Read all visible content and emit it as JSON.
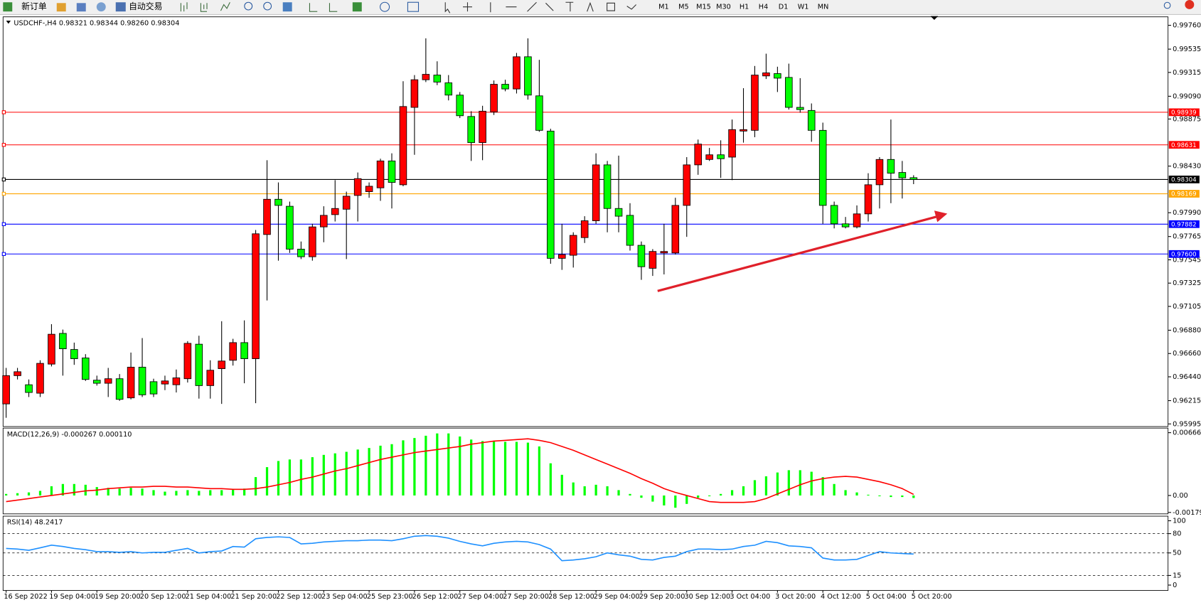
{
  "toolbar": {
    "new_order": "新订单",
    "auto_trading": "自动交易",
    "timeframes": [
      "M1",
      "M5",
      "M15",
      "M30",
      "H1",
      "H4",
      "D1",
      "W1",
      "MN"
    ]
  },
  "chart_data": [
    {
      "type": "candlestick",
      "title": "USDCHF-,H4  0.98321 0.98344 0.98260 0.98304",
      "up_color": "#ff0000",
      "down_color": "#00ff00",
      "categories": [
        "16 Sep 2022",
        null,
        null,
        null,
        "19 Sep 04:00",
        null,
        null,
        null,
        "19 Sep 20:00",
        null,
        null,
        null,
        "20 Sep 12:00",
        null,
        null,
        null,
        "21 Sep 04:00",
        null,
        null,
        null,
        "21 Sep 20:00",
        null,
        null,
        null,
        "22 Sep 12:00",
        null,
        null,
        null,
        "23 Sep 04:00",
        null,
        null,
        null,
        "25 Sep 23:00",
        null,
        null,
        null,
        "26 Sep 12:00",
        null,
        null,
        null,
        "27 Sep 04:00",
        null,
        null,
        null,
        "27 Sep 20:00",
        null,
        null,
        null,
        "28 Sep 12:00",
        null,
        null,
        null,
        "29 Sep 04:00",
        null,
        null,
        null,
        "29 Sep 20:00",
        null,
        null,
        null,
        "30 Sep 12:00",
        null,
        null,
        null,
        "3 Oct 04:00",
        null,
        null,
        null,
        "3 Oct 20:00",
        null,
        null,
        null,
        "4 Oct 12:00",
        null,
        null,
        null,
        "5 Oct 04:00",
        null,
        null,
        null,
        "5 Oct 20:00"
      ],
      "open": [
        0.96184,
        0.96451,
        0.96365,
        0.96285,
        0.9656,
        0.9685,
        0.96698,
        0.96618,
        0.96408,
        0.96379,
        0.96422,
        0.96241,
        0.96531,
        0.96394,
        0.96372,
        0.96365,
        0.96422,
        0.96748,
        0.96357,
        0.96517,
        0.96596,
        0.96763,
        0.96611,
        0.97784,
        0.98117,
        0.98051,
        0.97646,
        0.97574,
        0.97856,
        0.97972,
        0.98023,
        0.98153,
        0.98189,
        0.98225,
        0.98479,
        0.98254,
        0.98985,
        0.99246,
        0.9929,
        0.99217,
        0.99101,
        0.98899,
        0.98652,
        0.98942,
        0.99203,
        0.99159,
        0.99463,
        0.99094,
        0.98761,
        0.97559,
        0.97588,
        0.97755,
        0.97914,
        0.98442,
        0.9803,
        0.97965,
        0.97682,
        0.97465,
        0.9761,
        0.9761,
        0.98059,
        0.98442,
        0.98493,
        0.98537,
        0.98515,
        0.98761,
        0.98768,
        0.99282,
        0.99304,
        0.99268,
        0.98985,
        0.98956,
        0.98768,
        0.98059,
        0.97885,
        0.97856,
        0.97979,
        0.98254,
        0.98493,
        0.9837,
        0.98321
      ],
      "high": [
        0.96524,
        0.96524,
        0.96415,
        0.96596,
        0.96937,
        0.96886,
        0.96763,
        0.96654,
        0.96451,
        0.96524,
        0.96466,
        0.96669,
        0.96806,
        0.96422,
        0.96451,
        0.96509,
        0.96777,
        0.96828,
        0.96596,
        0.96965,
        0.96799,
        0.96973,
        0.97827,
        0.98486,
        0.98276,
        0.98095,
        0.97718,
        0.97885,
        0.98051,
        0.98298,
        0.98189,
        0.9837,
        0.98276,
        0.985,
        0.98551,
        0.99232,
        0.9929,
        0.99637,
        0.9942,
        0.9929,
        0.9913,
        0.98949,
        0.99,
        0.99239,
        0.99246,
        0.99499,
        0.99637,
        0.99434,
        0.98783,
        0.97885,
        0.97805,
        0.97957,
        0.98551,
        0.98479,
        0.98529,
        0.9808,
        0.97718,
        0.97646,
        0.97885,
        0.98131,
        0.98515,
        0.98681,
        0.98602,
        0.98674,
        0.9887,
        0.99166,
        0.99376,
        0.99492,
        0.99369,
        0.99398,
        0.99261,
        0.99022,
        0.98841,
        0.98095,
        0.9795,
        0.98059,
        0.98363,
        0.98515,
        0.9887,
        0.98479,
        0.98344
      ],
      "low": [
        0.96053,
        0.96415,
        0.96249,
        0.96249,
        0.96538,
        0.96451,
        0.96553,
        0.96401,
        0.96357,
        0.96249,
        0.96213,
        0.96227,
        0.96249,
        0.96249,
        0.96314,
        0.96292,
        0.96386,
        0.96234,
        0.96234,
        0.96184,
        0.96546,
        0.96379,
        0.96191,
        0.97161,
        0.97537,
        0.9761,
        0.97552,
        0.97537,
        0.97711,
        0.97907,
        0.97552,
        0.97907,
        0.98131,
        0.98102,
        0.9803,
        0.9824,
        0.98537,
        0.99224,
        0.99195,
        0.99051,
        0.98884,
        0.98479,
        0.98486,
        0.98913,
        0.99137,
        0.99116,
        0.99058,
        0.98754,
        0.97508,
        0.9745,
        0.97472,
        0.97704,
        0.97885,
        0.97805,
        0.97805,
        0.97632,
        0.97356,
        0.97393,
        0.97407,
        0.97595,
        0.97762,
        0.98348,
        0.98479,
        0.98319,
        0.98298,
        0.98652,
        0.98703,
        0.99253,
        0.9913,
        0.98964,
        0.98935,
        0.9866,
        0.97885,
        0.97842,
        0.97842,
        0.97842,
        0.97907,
        0.9803,
        0.9808,
        0.98124,
        0.9826
      ],
      "close": [
        0.96451,
        0.96488,
        0.96292,
        0.96567,
        0.96842,
        0.96705,
        0.96611,
        0.96415,
        0.96379,
        0.96422,
        0.96227,
        0.96531,
        0.9627,
        0.96278,
        0.96401,
        0.9643,
        0.96756,
        0.96357,
        0.96502,
        0.96589,
        0.96763,
        0.96611,
        0.97791,
        0.98117,
        0.98059,
        0.97646,
        0.97574,
        0.97856,
        0.97965,
        0.9803,
        0.98146,
        0.98312,
        0.9824,
        0.98479,
        0.98276,
        0.98993,
        0.99246,
        0.99297,
        0.99224,
        0.99101,
        0.98906,
        0.98652,
        0.98949,
        0.99203,
        0.99159,
        0.99463,
        0.99101,
        0.98768,
        0.97559,
        0.97595,
        0.97776,
        0.97914,
        0.98442,
        0.9803,
        0.97957,
        0.97682,
        0.9748,
        0.97624,
        0.97624,
        0.98059,
        0.98442,
        0.98638,
        0.98537,
        0.985,
        0.98775,
        0.98775,
        0.9929,
        0.99311,
        0.99261,
        0.98985,
        0.98964,
        0.98768,
        0.98059,
        0.97885,
        0.97856,
        0.97979,
        0.98254,
        0.98493,
        0.98363,
        0.98319,
        0.98304
      ],
      "ylim": [
        0.9597,
        0.9984
      ],
      "yticks": [
        {
          "value": 0.9976,
          "label": "0.99760"
        },
        0.99535,
        0.99315,
        {
          "value": 0.9909,
          "label": "0.99090"
        },
        0.98875,
        {
          "value": 0.9843,
          "label": "0.98430"
        },
        {
          "value": 0.9799,
          "label": "0.97990"
        },
        0.97765,
        0.97545,
        0.97325,
        0.97105,
        {
          "value": 0.9688,
          "label": "0.96880"
        },
        {
          "value": 0.9666,
          "label": "0.96660"
        },
        {
          "value": 0.9644,
          "label": "0.96440"
        },
        0.96215,
        0.95995
      ],
      "hlines": [
        {
          "value": 0.98939,
          "label": "0.98939",
          "color": "#ff0000"
        },
        {
          "value": 0.98631,
          "label": "0.98631",
          "color": "#ff0000"
        },
        {
          "value": 0.98304,
          "label": "0.98304",
          "color": "#000000"
        },
        {
          "value": 0.98169,
          "label": "0.98169",
          "color": "#ffa500"
        },
        {
          "value": 0.97882,
          "label": "0.97882",
          "color": "#0000ff"
        },
        {
          "value": 0.976,
          "label": "0.97600",
          "color": "#0000ff"
        }
      ],
      "grid": false
    },
    {
      "type": "macd",
      "title": "MACD(12,26,9) -0.000267 0.000110",
      "histogram": {
        "color": "#00ff00",
        "values": [
          0.000163,
          0.000244,
          0.000325,
          0.000488,
          0.000976,
          0.00122,
          0.00122,
          0.001138,
          0.000894,
          0.000813,
          0.000732,
          0.000813,
          0.000732,
          0.000569,
          0.000407,
          0.000488,
          0.000569,
          0.000488,
          0.000569,
          0.000569,
          0.00065,
          0.000732,
          0.001951,
          0.003008,
          0.003659,
          0.003821,
          0.003821,
          0.004065,
          0.004309,
          0.004472,
          0.004634,
          0.004878,
          0.005041,
          0.005285,
          0.005447,
          0.005854,
          0.006098,
          0.006341,
          0.006585,
          0.006585,
          0.00626,
          0.005935,
          0.005772,
          0.005772,
          0.005691,
          0.005691,
          0.00561,
          0.005203,
          0.003415,
          0.002195,
          0.001382,
          0.000976,
          0.001138,
          0.000976,
          0.000569,
          0.000163,
          -0.000244,
          -0.00065,
          -0.001057,
          -0.001301,
          -0.000894,
          -0.000244,
          -8.1e-05,
          0.000163,
          0.000569,
          0.000976,
          0.001626,
          0.002033,
          0.002439,
          0.002683,
          0.002683,
          0.00252,
          0.001951,
          0.00122,
          0.000569,
          0.000325,
          8.1e-05,
          -8.1e-05,
          -0.000163,
          -0.000163,
          -0.000267
        ]
      },
      "signal": {
        "color": "#ff0000",
        "values": [
          -0.00065,
          -0.000488,
          -0.000325,
          -0.000163,
          0,
          0.000163,
          0.000325,
          0.000488,
          0.000569,
          0.000732,
          0.000813,
          0.000894,
          0.000894,
          0.000976,
          0.000976,
          0.000894,
          0.000894,
          0.000813,
          0.000732,
          0.000732,
          0.00065,
          0.00065,
          0.000732,
          0.000894,
          0.001138,
          0.001382,
          0.001707,
          0.001951,
          0.002276,
          0.002602,
          0.002846,
          0.003171,
          0.003496,
          0.003821,
          0.004065,
          0.004309,
          0.004553,
          0.004715,
          0.004878,
          0.005041,
          0.005203,
          0.005447,
          0.00561,
          0.005772,
          0.005854,
          0.005935,
          0.006016,
          0.005854,
          0.00561,
          0.005203,
          0.004797,
          0.004309,
          0.003821,
          0.003333,
          0.002846,
          0.002358,
          0.001789,
          0.001301,
          0.000732,
          0.000325,
          0,
          -0.000325,
          -0.00065,
          -0.000732,
          -0.000732,
          -0.000732,
          -0.00065,
          -0.000325,
          0.000163,
          0.00065,
          0.001138,
          0.001545,
          0.001789,
          0.001951,
          0.002033,
          0.001951,
          0.001707,
          0.001463,
          0.001138,
          0.000732,
          0.00011
        ]
      },
      "ylim": [
        -0.00187,
        0.00707
      ],
      "yticks": [
        0.006664,
        {
          "value": 0,
          "label": "0.00"
        },
        -0.001798
      ],
      "grid": false
    },
    {
      "type": "line",
      "title": "RSI(14) 48.2417",
      "color": "#1e90ff",
      "values": [
        57,
        56,
        54,
        58,
        62,
        60,
        57,
        55,
        52,
        52,
        51,
        52,
        50,
        51,
        51,
        54,
        57,
        50,
        52,
        53,
        60,
        59,
        72,
        74,
        75,
        74,
        64,
        65,
        67,
        68,
        69,
        69,
        70,
        70,
        69,
        72,
        76,
        77,
        76,
        73,
        68,
        64,
        61,
        65,
        67,
        68,
        67,
        63,
        56,
        38,
        39,
        41,
        44,
        50,
        47,
        45,
        40,
        39,
        43,
        45,
        52,
        56,
        56,
        55,
        56,
        60,
        62,
        68,
        66,
        61,
        60,
        58,
        42,
        39,
        39,
        40,
        46,
        52,
        50,
        49,
        48.2417
      ],
      "ylim": [
        0,
        100
      ],
      "yticks": [
        100,
        80,
        50,
        15,
        0
      ],
      "grid": true
    }
  ]
}
